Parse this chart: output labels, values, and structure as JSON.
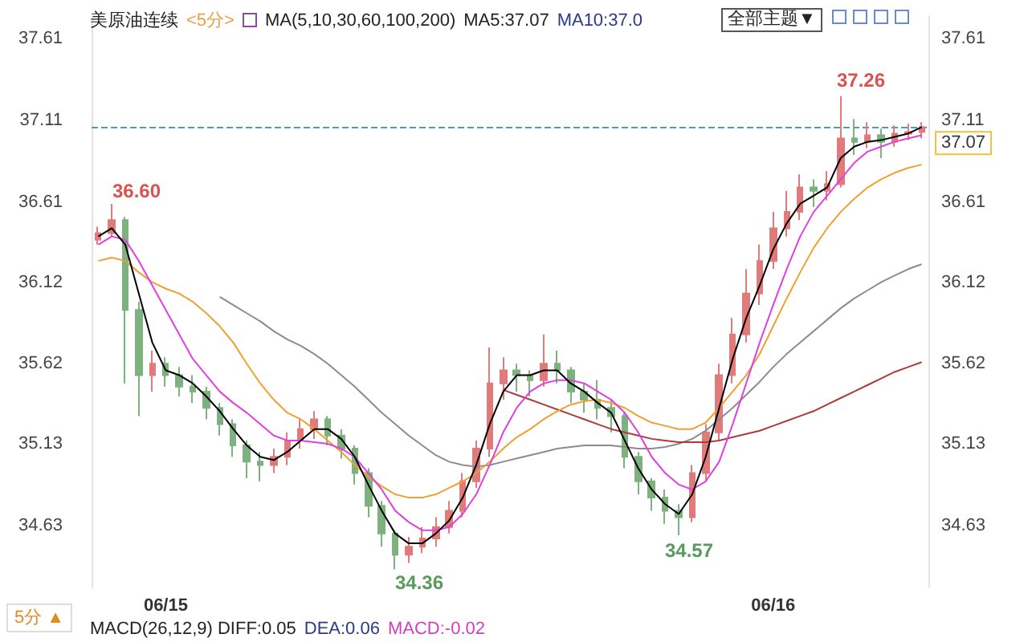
{
  "chart_data": {
    "type": "candlestick",
    "title": "美原油连续",
    "subtitle": "<5分>",
    "categories": [
      null,
      null,
      null,
      null,
      null,
      "06/15",
      null,
      null,
      null,
      null,
      null,
      null,
      null,
      null,
      null,
      null,
      null,
      null,
      null,
      null,
      null,
      null,
      null,
      null,
      null,
      null,
      null,
      null,
      null,
      null,
      null,
      null,
      null,
      null,
      null,
      null,
      null,
      null,
      null,
      null,
      null,
      null,
      null,
      null,
      null,
      null,
      null,
      null,
      null,
      null,
      "06/16",
      null,
      null,
      null,
      null,
      null,
      null,
      null,
      null,
      null,
      null,
      null
    ],
    "ylim": [
      34.25,
      37.75
    ],
    "yticks": [
      34.63,
      35.13,
      35.62,
      36.12,
      36.61,
      37.11,
      37.61
    ],
    "y2lim": [
      34.25,
      37.75
    ],
    "y2ticks": [
      34.63,
      35.13,
      35.62,
      36.12,
      36.61,
      37.11,
      37.61
    ],
    "grid": false,
    "marker": "none",
    "series": [
      {
        "type": "line",
        "color": "#8c8c8c",
        "values": [
          null,
          null,
          null,
          null,
          null,
          null,
          null,
          null,
          null,
          36.03,
          35.98,
          35.93,
          35.88,
          35.82,
          35.77,
          35.73,
          35.68,
          35.62,
          35.55,
          35.48,
          35.4,
          35.32,
          35.25,
          35.18,
          35.12,
          35.06,
          35.02,
          35.0,
          34.99,
          35.0,
          35.02,
          35.04,
          35.06,
          35.08,
          35.1,
          35.11,
          35.12,
          35.12,
          35.12,
          35.11,
          35.1,
          35.1,
          35.11,
          35.13,
          35.16,
          35.21,
          35.28,
          35.35,
          35.43,
          35.51,
          35.6,
          35.68,
          35.75,
          35.82,
          35.89,
          35.96,
          36.02,
          36.07,
          36.12,
          36.16,
          36.2,
          36.23
        ]
      },
      {
        "type": "line",
        "color": "#b03a3a",
        "values": [
          null,
          null,
          null,
          null,
          null,
          null,
          null,
          null,
          null,
          null,
          null,
          null,
          null,
          null,
          null,
          null,
          null,
          null,
          null,
          null,
          null,
          null,
          null,
          null,
          null,
          null,
          null,
          null,
          null,
          null,
          35.46,
          35.43,
          35.4,
          35.37,
          35.34,
          35.31,
          35.28,
          35.25,
          35.22,
          35.2,
          35.18,
          35.16,
          35.15,
          35.14,
          35.14,
          35.14,
          35.15,
          35.17,
          35.19,
          35.21,
          35.24,
          35.27,
          35.3,
          35.33,
          35.37,
          35.41,
          35.45,
          35.49,
          35.53,
          35.57,
          35.6,
          35.63
        ]
      },
      {
        "type": "line",
        "color": "#f0a030",
        "values": [
          36.25,
          36.27,
          36.25,
          36.18,
          36.12,
          36.08,
          36.05,
          36.0,
          35.93,
          35.85,
          35.75,
          35.62,
          35.5,
          35.4,
          35.32,
          35.28,
          35.22,
          35.15,
          35.08,
          35.0,
          34.93,
          34.87,
          34.82,
          34.8,
          34.8,
          34.82,
          34.86,
          34.9,
          34.95,
          35.02,
          35.1,
          35.17,
          35.22,
          35.28,
          35.33,
          35.37,
          35.39,
          35.4,
          35.38,
          35.35,
          35.3,
          35.26,
          35.24,
          35.22,
          35.22,
          35.26,
          35.35,
          35.45,
          35.55,
          35.68,
          35.85,
          36.02,
          36.18,
          36.33,
          36.45,
          36.55,
          36.63,
          36.7,
          36.75,
          36.79,
          36.82,
          36.84
        ]
      },
      {
        "type": "line",
        "color": "#e040e0",
        "values": [
          36.35,
          36.4,
          36.38,
          36.25,
          36.1,
          35.95,
          35.8,
          35.65,
          35.55,
          35.45,
          35.38,
          35.32,
          35.25,
          35.18,
          35.15,
          35.15,
          35.14,
          35.13,
          35.1,
          35.05,
          34.95,
          34.85,
          34.72,
          34.65,
          34.6,
          34.6,
          34.62,
          34.7,
          34.82,
          35.0,
          35.2,
          35.35,
          35.45,
          35.5,
          35.52,
          35.52,
          35.5,
          35.45,
          35.4,
          35.32,
          35.2,
          35.05,
          34.95,
          34.88,
          34.85,
          34.9,
          35.02,
          35.25,
          35.5,
          35.75,
          35.98,
          36.2,
          36.4,
          36.55,
          36.65,
          36.75,
          36.85,
          36.92,
          36.95,
          36.98,
          37.0,
          37.02
        ]
      },
      {
        "ohlc": [
          [
            36.38,
            36.46,
            36.35,
            36.42
          ],
          [
            36.42,
            36.6,
            36.4,
            36.5
          ],
          [
            36.5,
            36.52,
            35.5,
            35.95
          ],
          [
            35.95,
            36.0,
            35.3,
            35.55
          ],
          [
            35.55,
            35.7,
            35.45,
            35.62
          ],
          [
            35.62,
            35.66,
            35.48,
            35.55
          ],
          [
            35.55,
            35.6,
            35.42,
            35.48
          ],
          [
            35.48,
            35.55,
            35.38,
            35.45
          ],
          [
            35.45,
            35.48,
            35.28,
            35.35
          ],
          [
            35.35,
            35.38,
            35.18,
            35.25
          ],
          [
            35.25,
            35.28,
            35.05,
            35.12
          ],
          [
            35.12,
            35.15,
            34.92,
            35.02
          ],
          [
            35.02,
            35.08,
            34.9,
            35.0
          ],
          [
            35.0,
            35.1,
            34.95,
            35.05
          ],
          [
            35.05,
            35.2,
            35.0,
            35.15
          ],
          [
            35.15,
            35.28,
            35.1,
            35.22
          ],
          [
            35.22,
            35.33,
            35.16,
            35.28
          ],
          [
            35.28,
            35.3,
            35.12,
            35.18
          ],
          [
            35.18,
            35.22,
            35.04,
            35.1
          ],
          [
            35.1,
            35.12,
            34.88,
            34.95
          ],
          [
            34.95,
            34.98,
            34.68,
            34.75
          ],
          [
            34.75,
            34.78,
            34.5,
            34.58
          ],
          [
            34.58,
            34.6,
            34.36,
            34.45
          ],
          [
            34.45,
            34.56,
            34.4,
            34.5
          ],
          [
            34.5,
            34.62,
            34.46,
            34.55
          ],
          [
            34.55,
            34.68,
            34.5,
            34.62
          ],
          [
            34.62,
            34.78,
            34.58,
            34.72
          ],
          [
            34.72,
            34.95,
            34.68,
            34.9
          ],
          [
            34.9,
            35.15,
            34.86,
            35.1
          ],
          [
            35.1,
            35.72,
            35.05,
            35.5
          ],
          [
            35.5,
            35.66,
            35.4,
            35.58
          ],
          [
            35.58,
            35.62,
            35.45,
            35.55
          ],
          [
            35.55,
            35.58,
            35.42,
            35.52
          ],
          [
            35.52,
            35.8,
            35.48,
            35.62
          ],
          [
            35.62,
            35.7,
            35.5,
            35.58
          ],
          [
            35.58,
            35.6,
            35.38,
            35.45
          ],
          [
            35.45,
            35.5,
            35.32,
            35.4
          ],
          [
            35.4,
            35.52,
            35.28,
            35.35
          ],
          [
            35.35,
            35.4,
            35.2,
            35.3
          ],
          [
            35.3,
            35.32,
            34.98,
            35.05
          ],
          [
            35.05,
            35.08,
            34.82,
            34.9
          ],
          [
            34.9,
            34.92,
            34.72,
            34.8
          ],
          [
            34.8,
            34.85,
            34.64,
            34.72
          ],
          [
            34.72,
            34.76,
            34.57,
            34.68
          ],
          [
            34.68,
            35.0,
            34.65,
            34.95
          ],
          [
            34.95,
            35.25,
            34.9,
            35.2
          ],
          [
            35.2,
            35.62,
            35.15,
            35.55
          ],
          [
            35.55,
            35.9,
            35.5,
            35.8
          ],
          [
            35.8,
            36.2,
            35.75,
            36.05
          ],
          [
            36.05,
            36.35,
            35.98,
            36.25
          ],
          [
            36.25,
            36.55,
            36.2,
            36.45
          ],
          [
            36.45,
            36.68,
            36.4,
            36.55
          ],
          [
            36.55,
            36.78,
            36.5,
            36.7
          ],
          [
            36.7,
            36.75,
            36.58,
            36.68
          ],
          [
            36.68,
            36.8,
            36.62,
            36.72
          ],
          [
            36.72,
            37.26,
            36.7,
            37.0
          ],
          [
            37.0,
            37.12,
            36.9,
            36.98
          ],
          [
            36.98,
            37.1,
            36.94,
            37.02
          ],
          [
            37.02,
            37.06,
            36.88,
            36.98
          ],
          [
            36.98,
            37.08,
            36.95,
            37.03
          ],
          [
            37.03,
            37.09,
            36.99,
            37.04
          ],
          [
            37.04,
            37.1,
            37.0,
            37.07
          ]
        ],
        "colors": [
          "#e07b7b",
          "#e07b7b",
          "#7fb07f",
          "#7fb07f",
          "#e07b7b",
          "#7fb07f",
          "#7fb07f",
          "#7fb07f",
          "#7fb07f",
          "#7fb07f",
          "#7fb07f",
          "#7fb07f",
          "#7fb07f",
          "#e07b7b",
          "#e07b7b",
          "#e07b7b",
          "#e07b7b",
          "#7fb07f",
          "#7fb07f",
          "#7fb07f",
          "#7fb07f",
          "#7fb07f",
          "#7fb07f",
          "#e07b7b",
          "#e07b7b",
          "#e07b7b",
          "#e07b7b",
          "#e07b7b",
          "#e07b7b",
          "#e07b7b",
          "#e07b7b",
          "#7fb07f",
          "#7fb07f",
          "#e07b7b",
          "#7fb07f",
          "#7fb07f",
          "#7fb07f",
          "#7fb07f",
          "#7fb07f",
          "#7fb07f",
          "#7fb07f",
          "#7fb07f",
          "#7fb07f",
          "#7fb07f",
          "#e07b7b",
          "#e07b7b",
          "#e07b7b",
          "#e07b7b",
          "#e07b7b",
          "#e07b7b",
          "#e07b7b",
          "#e07b7b",
          "#e07b7b",
          "#7fb07f",
          "#e07b7b",
          "#e07b7b",
          "#7fb07f",
          "#e07b7b",
          "#7fb07f",
          "#e07b7b",
          "#e07b7b",
          "#e07b7b"
        ]
      },
      {
        "type": "line",
        "color": "#000000",
        "values": [
          36.4,
          36.45,
          36.35,
          36.05,
          35.75,
          35.58,
          35.55,
          35.5,
          35.42,
          35.33,
          35.22,
          35.12,
          35.05,
          35.03,
          35.08,
          35.15,
          35.22,
          35.22,
          35.16,
          35.05,
          34.88,
          34.72,
          34.58,
          34.52,
          34.52,
          34.58,
          34.66,
          34.8,
          35.0,
          35.25,
          35.45,
          35.55,
          35.55,
          35.58,
          35.58,
          35.5,
          35.45,
          35.38,
          35.32,
          35.15,
          34.98,
          34.85,
          34.76,
          34.7,
          34.82,
          35.05,
          35.35,
          35.65,
          35.9,
          36.1,
          36.32,
          36.48,
          36.6,
          36.65,
          36.7,
          36.88,
          36.95,
          36.98,
          36.99,
          37.01,
          37.03,
          37.07
        ]
      }
    ],
    "ref_lines": [
      {
        "axis": "y",
        "value": 37.07,
        "label": "37.07",
        "color": "#4a9cc8",
        "line_style": "dashed"
      }
    ],
    "annotations": [
      "MA(5,10,30,60,100,200)",
      "MA5:37.07",
      "MA10:37.0",
      "全部主题▼",
      "5分 ▲",
      "MACD(26,12,9) DIFF:0.05",
      "DEA:0.06",
      "MACD:-0.02",
      "36.60",
      "34.36",
      "34.57",
      "37.26"
    ]
  }
}
